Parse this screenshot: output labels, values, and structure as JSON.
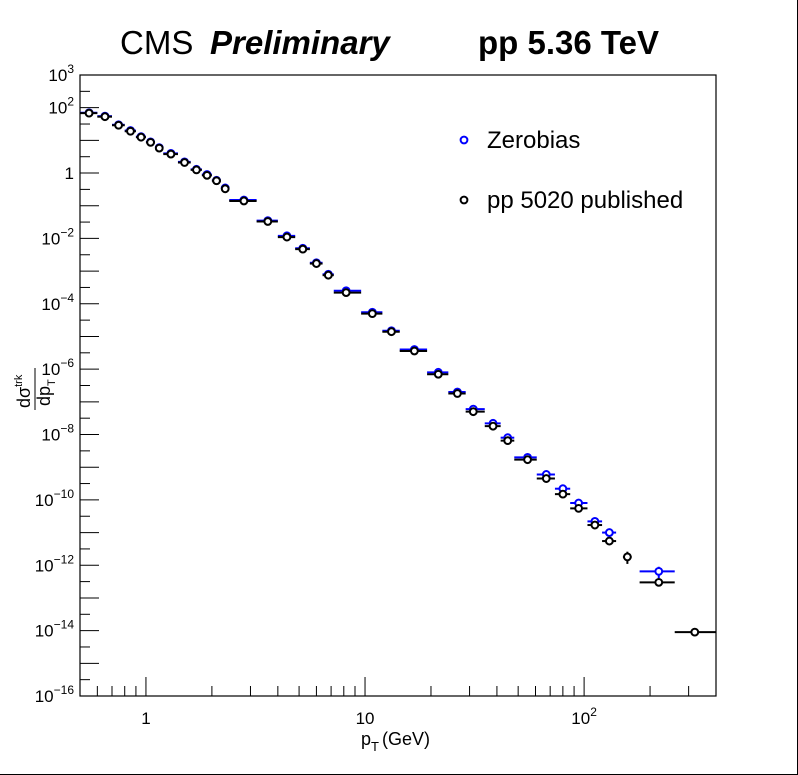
{
  "header": {
    "experiment": "CMS",
    "status": "Preliminary",
    "system": "pp 5.36 TeV"
  },
  "colors": {
    "series_zerobias": "#0000ff",
    "series_published": "#000000",
    "axis": "#000000"
  },
  "chart_data": {
    "type": "scatter",
    "xlabel": "(GeV)",
    "ylabel": "dσ/dp",
    "x_scale": "log",
    "y_scale": "log",
    "xlim": [
      0.5,
      400
    ],
    "ylim": [
      1e-16,
      1000
    ],
    "x_tick_labels": [
      {
        "value": 1,
        "label": "1"
      },
      {
        "value": 10,
        "label": "10"
      },
      {
        "value": 100,
        "label": "10",
        "exp": "2"
      }
    ],
    "y_tick_labels": [
      {
        "value": 1e-16,
        "exp": "−16"
      },
      {
        "value": 1e-14,
        "exp": "−14"
      },
      {
        "value": 1e-12,
        "exp": "−12"
      },
      {
        "value": 1e-10,
        "exp": "−10"
      },
      {
        "value": 1e-08,
        "exp": "−8"
      },
      {
        "value": 1e-06,
        "exp": "−6"
      },
      {
        "value": 0.0001,
        "exp": "−4"
      },
      {
        "value": 0.01,
        "exp": "−2"
      },
      {
        "value": 1,
        "exp": "",
        "label": "1"
      },
      {
        "value": 100,
        "exp": "2"
      },
      {
        "value": 1000,
        "exp": "3"
      }
    ],
    "grid": false,
    "legend_position": "top-right",
    "series": [
      {
        "name": "Zerobias",
        "color": "#0000ff",
        "points": [
          {
            "x": 0.55,
            "y": 70,
            "xerr": [
              0.5,
              0.6
            ]
          },
          {
            "x": 0.65,
            "y": 55,
            "xerr": [
              0.6,
              0.7
            ]
          },
          {
            "x": 0.75,
            "y": 30,
            "xerr": [
              0.7,
              0.8
            ]
          },
          {
            "x": 0.85,
            "y": 20,
            "xerr": [
              0.8,
              0.9
            ]
          },
          {
            "x": 0.95,
            "y": 13,
            "xerr": [
              0.9,
              1.0
            ]
          },
          {
            "x": 1.05,
            "y": 9,
            "xerr": [
              1.0,
              1.1
            ]
          },
          {
            "x": 1.15,
            "y": 6,
            "xerr": [
              1.1,
              1.2
            ]
          },
          {
            "x": 1.3,
            "y": 4,
            "xerr": [
              1.2,
              1.4
            ]
          },
          {
            "x": 1.5,
            "y": 2.2,
            "xerr": [
              1.4,
              1.6
            ]
          },
          {
            "x": 1.7,
            "y": 1.3,
            "xerr": [
              1.6,
              1.8
            ]
          },
          {
            "x": 1.9,
            "y": 0.9,
            "xerr": [
              1.8,
              2.0
            ]
          },
          {
            "x": 2.1,
            "y": 0.6,
            "xerr": [
              2.0,
              2.2
            ]
          },
          {
            "x": 2.3,
            "y": 0.35,
            "xerr": [
              2.2,
              2.4
            ]
          },
          {
            "x": 2.8,
            "y": 0.15,
            "xerr": [
              2.4,
              3.2
            ]
          },
          {
            "x": 3.6,
            "y": 0.035,
            "xerr": [
              3.2,
              4.0
            ]
          },
          {
            "x": 4.4,
            "y": 0.012,
            "xerr": [
              4.0,
              4.8
            ]
          },
          {
            "x": 5.2,
            "y": 0.005,
            "xerr": [
              4.8,
              5.6
            ]
          },
          {
            "x": 6.0,
            "y": 0.0018,
            "xerr": [
              5.6,
              6.4
            ]
          },
          {
            "x": 6.8,
            "y": 0.0008,
            "xerr": [
              6.4,
              7.2
            ]
          },
          {
            "x": 8.2,
            "y": 0.00025,
            "xerr": [
              7.2,
              9.6
            ]
          },
          {
            "x": 10.8,
            "y": 5.5e-05,
            "xerr": [
              9.6,
              12.0
            ]
          },
          {
            "x": 13.2,
            "y": 1.5e-05,
            "xerr": [
              12.0,
              14.4
            ]
          },
          {
            "x": 16.8,
            "y": 4e-06,
            "xerr": [
              14.4,
              19.2
            ]
          },
          {
            "x": 21.6,
            "y": 8e-07,
            "xerr": [
              19.2,
              24.0
            ]
          },
          {
            "x": 26.4,
            "y": 2e-07,
            "xerr": [
              24.0,
              28.8
            ]
          },
          {
            "x": 31.2,
            "y": 6e-08,
            "xerr": [
              28.8,
              35.2
            ]
          },
          {
            "x": 38.4,
            "y": 2.2e-08,
            "xerr": [
              35.2,
              41.6
            ]
          },
          {
            "x": 44.8,
            "y": 8e-09,
            "xerr": [
              41.6,
              48.0
            ]
          },
          {
            "x": 55.2,
            "y": 2e-09,
            "xerr": [
              48.0,
              60.8
            ]
          },
          {
            "x": 67.2,
            "y": 6e-10,
            "xerr": [
              60.8,
              73.6
            ]
          },
          {
            "x": 80.0,
            "y": 2.2e-10,
            "xerr": [
              73.6,
              86.4
            ]
          },
          {
            "x": 94.4,
            "y": 8e-11,
            "xerr": [
              86.4,
              103.6
            ]
          },
          {
            "x": 112.0,
            "y": 2.2e-11,
            "xerr": [
              103.6,
              120.8
            ]
          },
          {
            "x": 130.4,
            "y": 1e-11,
            "xerr": [
              120.8,
              140.0
            ]
          },
          {
            "x": 219.2,
            "y": 6.5e-13,
            "xerr": [
              179.2,
              259.2
            ],
            "yerr": [
              4e-13,
              9e-13
            ]
          }
        ]
      },
      {
        "name": "pp 5020 published",
        "color": "#000000",
        "points": [
          {
            "x": 0.55,
            "y": 68,
            "xerr": [
              0.5,
              0.6
            ]
          },
          {
            "x": 0.65,
            "y": 53,
            "xerr": [
              0.6,
              0.7
            ]
          },
          {
            "x": 0.75,
            "y": 29,
            "xerr": [
              0.7,
              0.8
            ]
          },
          {
            "x": 0.85,
            "y": 19,
            "xerr": [
              0.8,
              0.9
            ]
          },
          {
            "x": 0.95,
            "y": 12.5,
            "xerr": [
              0.9,
              1.0
            ]
          },
          {
            "x": 1.05,
            "y": 8.7,
            "xerr": [
              1.0,
              1.1
            ]
          },
          {
            "x": 1.15,
            "y": 5.8,
            "xerr": [
              1.1,
              1.2
            ]
          },
          {
            "x": 1.3,
            "y": 3.8,
            "xerr": [
              1.2,
              1.4
            ]
          },
          {
            "x": 1.5,
            "y": 2.1,
            "xerr": [
              1.4,
              1.6
            ]
          },
          {
            "x": 1.7,
            "y": 1.25,
            "xerr": [
              1.6,
              1.8
            ]
          },
          {
            "x": 1.9,
            "y": 0.85,
            "xerr": [
              1.8,
              2.0
            ]
          },
          {
            "x": 2.1,
            "y": 0.58,
            "xerr": [
              2.0,
              2.2
            ]
          },
          {
            "x": 2.3,
            "y": 0.33,
            "xerr": [
              2.2,
              2.4
            ]
          },
          {
            "x": 2.8,
            "y": 0.14,
            "xerr": [
              2.4,
              3.2
            ]
          },
          {
            "x": 3.6,
            "y": 0.033,
            "xerr": [
              3.2,
              4.0
            ]
          },
          {
            "x": 4.4,
            "y": 0.011,
            "xerr": [
              4.0,
              4.8
            ]
          },
          {
            "x": 5.2,
            "y": 0.0047,
            "xerr": [
              4.8,
              5.6
            ]
          },
          {
            "x": 6.0,
            "y": 0.0017,
            "xerr": [
              5.6,
              6.4
            ]
          },
          {
            "x": 6.8,
            "y": 0.00075,
            "xerr": [
              6.4,
              7.2
            ]
          },
          {
            "x": 8.2,
            "y": 0.00022,
            "xerr": [
              7.2,
              9.6
            ]
          },
          {
            "x": 10.8,
            "y": 5e-05,
            "xerr": [
              9.6,
              12.0
            ]
          },
          {
            "x": 13.2,
            "y": 1.4e-05,
            "xerr": [
              12.0,
              14.4
            ]
          },
          {
            "x": 16.8,
            "y": 3.6e-06,
            "xerr": [
              14.4,
              19.2
            ]
          },
          {
            "x": 21.6,
            "y": 7e-07,
            "xerr": [
              19.2,
              24.0
            ]
          },
          {
            "x": 26.4,
            "y": 1.8e-07,
            "xerr": [
              24.0,
              28.8
            ]
          },
          {
            "x": 31.2,
            "y": 5e-08,
            "xerr": [
              28.8,
              35.2
            ]
          },
          {
            "x": 38.4,
            "y": 1.8e-08,
            "xerr": [
              35.2,
              41.6
            ]
          },
          {
            "x": 44.8,
            "y": 6.5e-09,
            "xerr": [
              41.6,
              48.0
            ]
          },
          {
            "x": 55.2,
            "y": 1.7e-09,
            "xerr": [
              48.0,
              60.8
            ]
          },
          {
            "x": 67.2,
            "y": 4.5e-10,
            "xerr": [
              60.8,
              73.6
            ]
          },
          {
            "x": 80.0,
            "y": 1.5e-10,
            "xerr": [
              73.6,
              86.4
            ]
          },
          {
            "x": 94.4,
            "y": 5.5e-11,
            "xerr": [
              86.4,
              103.6
            ]
          },
          {
            "x": 112.0,
            "y": 1.7e-11,
            "xerr": [
              103.6,
              120.8
            ]
          },
          {
            "x": 130.4,
            "y": 5.5e-12,
            "xerr": [
              120.8,
              140.0
            ]
          },
          {
            "x": 157.6,
            "y": 1.8e-12,
            "xerr": [
              150.4,
              164.8
            ],
            "yerr": [
              1.1e-12,
              2.6e-12
            ]
          },
          {
            "x": 219.2,
            "y": 3e-13,
            "xerr": [
              179.2,
              259.2
            ]
          },
          {
            "x": 320.0,
            "y": 9e-15,
            "xerr": [
              259.2,
              400.0
            ]
          }
        ]
      }
    ]
  }
}
